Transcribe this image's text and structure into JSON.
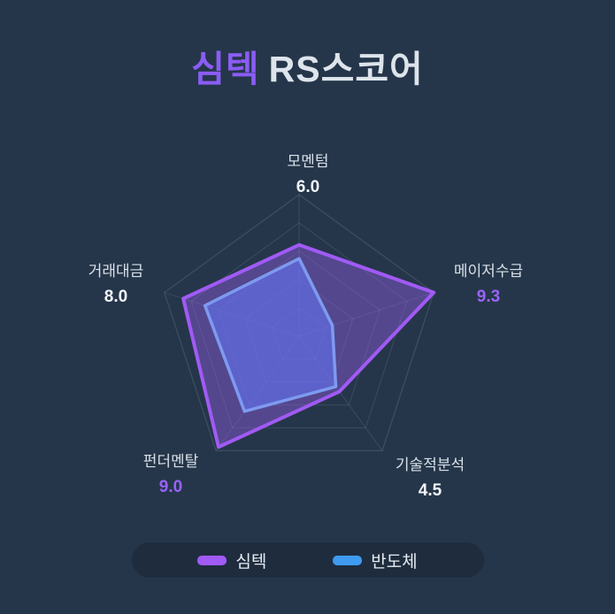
{
  "title": {
    "brand": "심텍",
    "rest": "RS스코어"
  },
  "colors": {
    "background": "#25364a",
    "accent_purple": "#8b5cf6",
    "value_purple": "#9a63f8",
    "text_light": "#d9e0e9",
    "grid_line": "rgba(135,155,175,0.22)",
    "legend_pill_bg": "#1e2c3e"
  },
  "chart_data": {
    "type": "radar",
    "title": "심텍 RS스코어",
    "axis_max": 9.3,
    "ring_count": 5,
    "grid": "pentagon, faint concentric rings with spokes",
    "legend_position": "bottom",
    "indicators": [
      "모멘텀",
      "메이저수급",
      "기술적분석",
      "펀더멘탈",
      "거래대금"
    ],
    "series": [
      {
        "name": "심텍",
        "line_color": "#a15af5",
        "fill_color": "rgba(150,95,235,0.42)",
        "legend_swatch": "#a15af5",
        "values": [
          6.0,
          9.3,
          4.5,
          9.0,
          8.0
        ]
      },
      {
        "name": "반도체",
        "line_color": "#7e9af0",
        "fill_color": "rgba(99,116,240,0.6)",
        "legend_swatch": "#3e9bf0",
        "values": [
          5.1,
          2.3,
          4.1,
          6.1,
          6.5
        ]
      }
    ],
    "axes": [
      {
        "label": "모멘텀",
        "value": "6.0",
        "accent": false
      },
      {
        "label": "메이저수급",
        "value": "9.3",
        "accent": true
      },
      {
        "label": "기술적분석",
        "value": "4.5",
        "accent": false
      },
      {
        "label": "펀더멘탈",
        "value": "9.0",
        "accent": true
      },
      {
        "label": "거래대금",
        "value": "8.0",
        "accent": false
      }
    ]
  },
  "legend": {
    "items": [
      {
        "label": "심텍"
      },
      {
        "label": "반도체"
      }
    ]
  }
}
